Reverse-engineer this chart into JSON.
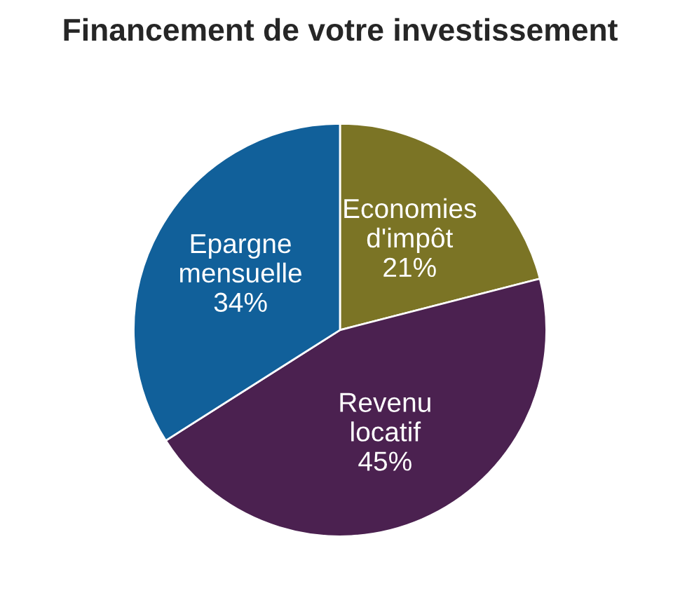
{
  "chart_data": {
    "type": "pie",
    "title": "Financement de votre investissement",
    "categories": [
      "Economies d'impôt",
      "Revenu locatif",
      "Epargne mensuelle"
    ],
    "values": [
      21,
      45,
      34
    ],
    "value_labels": [
      "21%",
      "45%",
      "34%"
    ],
    "colors": [
      "#7b7425",
      "#4b2150",
      "#11609a"
    ]
  }
}
